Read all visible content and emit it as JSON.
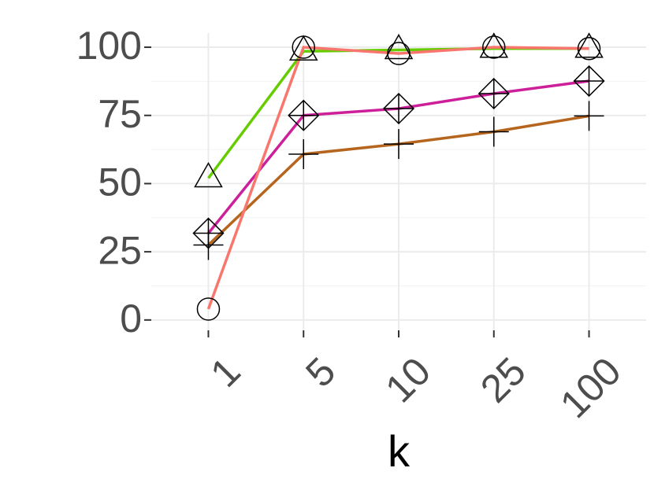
{
  "chart_data": {
    "type": "line",
    "x_label": "k",
    "categories": [
      "1",
      "5",
      "10",
      "25",
      "100"
    ],
    "series": [
      {
        "color": "#b5651d",
        "marker": "plus",
        "values": [
          27.5,
          60.8,
          64.5,
          69,
          74.8
        ]
      },
      {
        "color": "#cc1f99",
        "marker": "diamond",
        "values": [
          31.8,
          75,
          77.5,
          83,
          87.6
        ]
      },
      {
        "color": "#66cc00",
        "marker": "triangle",
        "values": [
          52,
          98.5,
          99,
          99.5,
          99.5
        ]
      },
      {
        "color": "#f8766d",
        "marker": "circle",
        "values": [
          4,
          100,
          97.7,
          100,
          99.5
        ]
      }
    ],
    "ylim": [
      -3.8,
      105.2
    ],
    "yticks": [
      0,
      25,
      50,
      75,
      100
    ],
    "grid": true,
    "minor_grid": true
  }
}
